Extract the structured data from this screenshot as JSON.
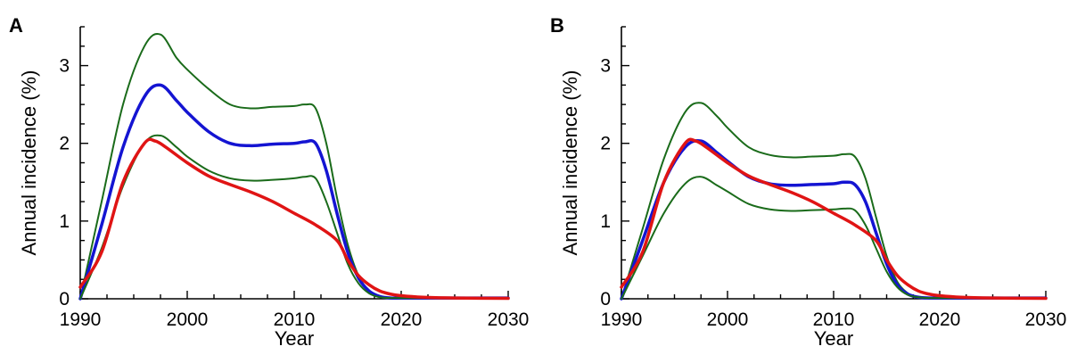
{
  "chart_data": [
    {
      "panel": "A",
      "type": "line",
      "xlabel": "Year",
      "ylabel": "Annual incidence (%)",
      "xlim": [
        1990,
        2030
      ],
      "ylim": [
        0,
        3.5
      ],
      "xticks": [
        1990,
        2000,
        2010,
        2020,
        2030
      ],
      "yticks": [
        0,
        1,
        2,
        3
      ],
      "grid": false,
      "legend": "none",
      "series": [
        {
          "color": "#1a6b1a",
          "line_width": 2,
          "x": [
            1990,
            1992,
            1994,
            1996,
            1997.5,
            1999,
            2000,
            2002,
            2004,
            2006,
            2008,
            2010,
            2011,
            2012,
            2013,
            2014,
            2015,
            2016,
            2017,
            2018,
            2019,
            2020,
            2022,
            2025,
            2030
          ],
          "y": [
            0.0,
            1.25,
            2.5,
            3.25,
            3.4,
            3.1,
            2.95,
            2.7,
            2.5,
            2.45,
            2.47,
            2.48,
            2.5,
            2.45,
            2.0,
            1.3,
            0.7,
            0.3,
            0.1,
            0.03,
            0.01,
            0.01,
            0.01,
            0.01,
            0.01
          ]
        },
        {
          "color": "#1414d2",
          "line_width": 3.5,
          "x": [
            1990,
            1992,
            1994,
            1996,
            1997.5,
            1999,
            2000,
            2002,
            2004,
            2006,
            2008,
            2010,
            2011,
            2012,
            2013,
            2014,
            2015,
            2016,
            2017,
            2018,
            2019,
            2020,
            2022,
            2025,
            2030
          ],
          "y": [
            0.0,
            0.95,
            1.95,
            2.6,
            2.75,
            2.55,
            2.4,
            2.15,
            2.0,
            1.97,
            1.99,
            2.0,
            2.02,
            2.0,
            1.65,
            1.1,
            0.6,
            0.27,
            0.1,
            0.03,
            0.01,
            0.01,
            0.01,
            0.01,
            0.01
          ]
        },
        {
          "color": "#1a6b1a",
          "line_width": 2,
          "x": [
            1990,
            1992,
            1994,
            1996,
            1997.5,
            1999,
            2000,
            2002,
            2004,
            2006,
            2008,
            2010,
            2011,
            2012,
            2013,
            2014,
            2015,
            2016,
            2017,
            2018,
            2019,
            2020,
            2022,
            2025,
            2030
          ],
          "y": [
            0.0,
            0.65,
            1.45,
            2.0,
            2.1,
            1.95,
            1.83,
            1.65,
            1.55,
            1.52,
            1.53,
            1.55,
            1.57,
            1.55,
            1.25,
            0.85,
            0.45,
            0.2,
            0.07,
            0.02,
            0.01,
            0.01,
            0.01,
            0.01,
            0.01
          ]
        },
        {
          "color": "#e01414",
          "line_width": 3.5,
          "x": [
            1990,
            1992,
            1994,
            1996,
            1997,
            1998,
            2000,
            2002,
            2004,
            2006,
            2008,
            2010,
            2012,
            2014,
            2015,
            2016,
            2017,
            2018,
            2019,
            2020,
            2022,
            2025,
            2030
          ],
          "y": [
            0.15,
            0.6,
            1.5,
            2.0,
            2.03,
            1.95,
            1.75,
            1.58,
            1.47,
            1.37,
            1.25,
            1.1,
            0.95,
            0.75,
            0.5,
            0.3,
            0.18,
            0.1,
            0.06,
            0.04,
            0.02,
            0.01,
            0.005
          ]
        }
      ]
    },
    {
      "panel": "B",
      "type": "line",
      "xlabel": "Year",
      "ylabel": "Annual incidence (%)",
      "xlim": [
        1990,
        2030
      ],
      "ylim": [
        0,
        3.5
      ],
      "xticks": [
        1990,
        2000,
        2010,
        2020,
        2030
      ],
      "yticks": [
        0,
        1,
        2,
        3
      ],
      "grid": false,
      "legend": "none",
      "series": [
        {
          "color": "#1a6b1a",
          "line_width": 2,
          "x": [
            1990,
            1992,
            1994,
            1996,
            1997.5,
            1999,
            2000,
            2002,
            2004,
            2006,
            2008,
            2010,
            2011,
            2012,
            2013,
            2014,
            2015,
            2016,
            2017,
            2018,
            2019,
            2020,
            2022,
            2025,
            2030
          ],
          "y": [
            0.0,
            0.9,
            1.8,
            2.4,
            2.52,
            2.35,
            2.2,
            1.95,
            1.85,
            1.82,
            1.83,
            1.84,
            1.86,
            1.83,
            1.55,
            1.05,
            0.55,
            0.22,
            0.07,
            0.02,
            0.01,
            0.01,
            0.01,
            0.01,
            0.01
          ]
        },
        {
          "color": "#1414d2",
          "line_width": 3.5,
          "x": [
            1990,
            1992,
            1994,
            1996,
            1997.5,
            1999,
            2000,
            2002,
            2004,
            2006,
            2008,
            2010,
            2011,
            2012,
            2013,
            2014,
            2015,
            2016,
            2017,
            2018,
            2019,
            2020,
            2022,
            2025,
            2030
          ],
          "y": [
            0.0,
            0.75,
            1.5,
            1.95,
            2.03,
            1.88,
            1.77,
            1.57,
            1.48,
            1.46,
            1.47,
            1.48,
            1.5,
            1.47,
            1.25,
            0.85,
            0.45,
            0.18,
            0.06,
            0.02,
            0.01,
            0.01,
            0.01,
            0.01,
            0.01
          ]
        },
        {
          "color": "#1a6b1a",
          "line_width": 2,
          "x": [
            1990,
            1992,
            1994,
            1996,
            1997.5,
            1999,
            2000,
            2002,
            2004,
            2006,
            2008,
            2010,
            2011,
            2012,
            2013,
            2014,
            2015,
            2016,
            2017,
            2018,
            2019,
            2020,
            2022,
            2025,
            2030
          ],
          "y": [
            0.0,
            0.55,
            1.1,
            1.48,
            1.57,
            1.46,
            1.38,
            1.22,
            1.15,
            1.13,
            1.14,
            1.15,
            1.16,
            1.14,
            0.95,
            0.65,
            0.35,
            0.15,
            0.05,
            0.02,
            0.01,
            0.01,
            0.01,
            0.01,
            0.01
          ]
        },
        {
          "color": "#e01414",
          "line_width": 3.5,
          "x": [
            1990,
            1992,
            1994,
            1996,
            1997,
            1998,
            2000,
            2002,
            2004,
            2006,
            2008,
            2010,
            2012,
            2014,
            2015,
            2016,
            2017,
            2018,
            2019,
            2020,
            2022,
            2025,
            2030
          ],
          "y": [
            0.15,
            0.6,
            1.5,
            2.0,
            2.03,
            1.95,
            1.75,
            1.58,
            1.47,
            1.37,
            1.25,
            1.1,
            0.95,
            0.75,
            0.5,
            0.3,
            0.18,
            0.1,
            0.06,
            0.04,
            0.02,
            0.01,
            0.005
          ]
        }
      ]
    }
  ]
}
